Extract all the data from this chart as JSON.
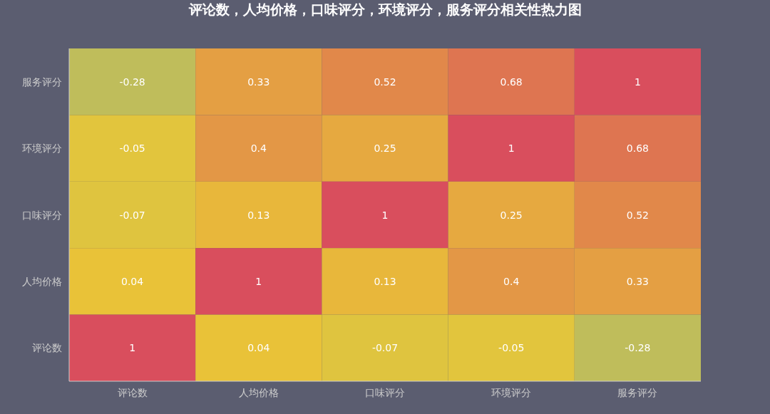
{
  "chart_data": {
    "type": "heatmap",
    "title": "评论数，人均价格，口味评分，环境评分，服务评分相关性热力图",
    "categories": [
      "评论数",
      "人均价格",
      "口味评分",
      "环境评分",
      "服务评分"
    ],
    "y_categories": [
      "服务评分",
      "环境评分",
      "口味评分",
      "人均价格",
      "评论数"
    ],
    "cells": [
      [
        -0.28,
        0.33,
        0.52,
        0.68,
        1
      ],
      [
        -0.05,
        0.4,
        0.25,
        1,
        0.68
      ],
      [
        -0.07,
        0.13,
        1,
        0.25,
        0.52
      ],
      [
        0.04,
        1,
        0.13,
        0.4,
        0.33
      ],
      [
        1,
        0.04,
        -0.07,
        -0.05,
        -0.28
      ]
    ],
    "data_labels": true
  }
}
